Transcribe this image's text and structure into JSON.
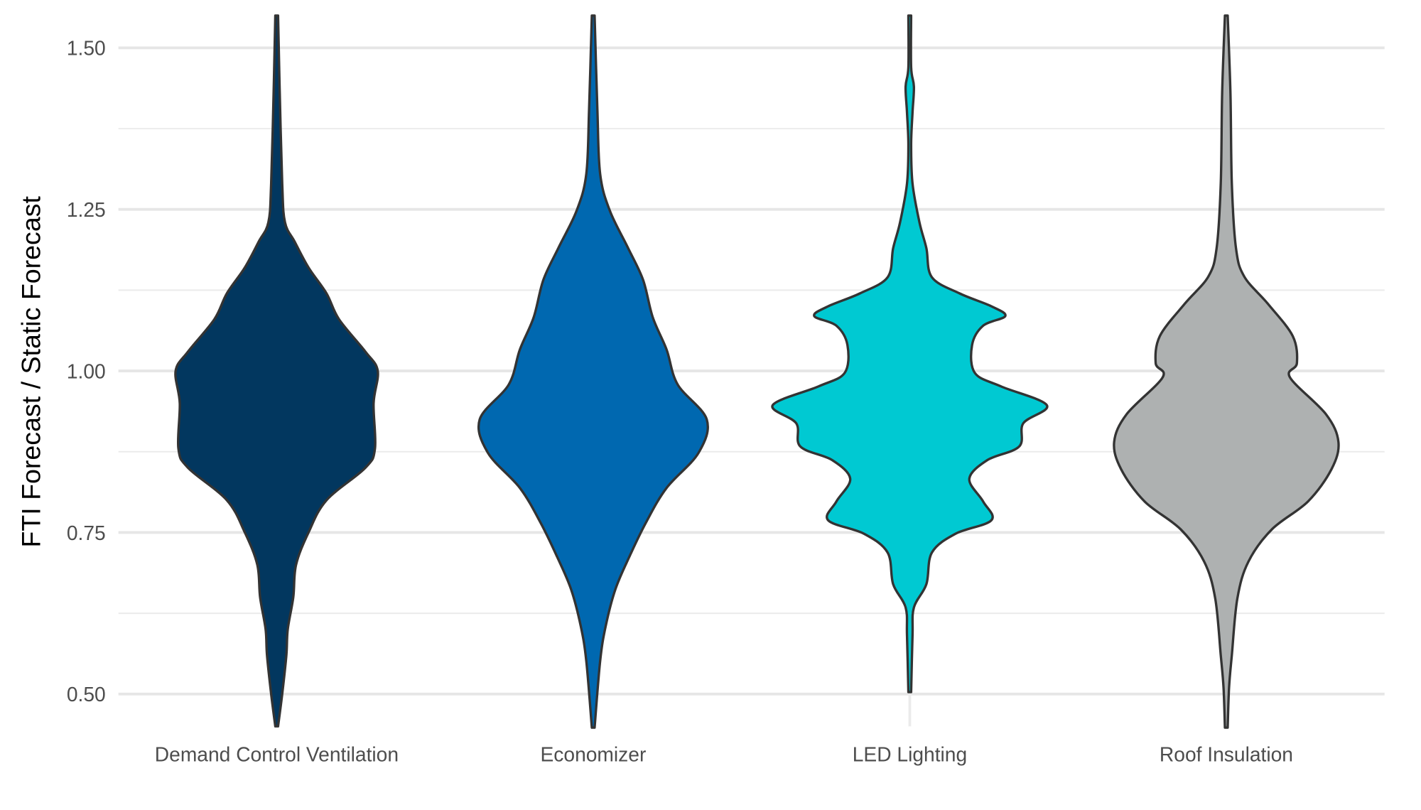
{
  "chart_data": {
    "type": "violin",
    "title": "",
    "xlabel": "",
    "ylabel": "FTI Forecast / Static Forecast",
    "ylim": [
      0.45,
      1.55
    ],
    "yticks": [
      "0.50",
      "0.75",
      "1.00",
      "1.25",
      "1.50"
    ],
    "ytick_values": [
      0.5,
      0.75,
      1.0,
      1.25,
      1.5
    ],
    "grid": true,
    "outline_color": "#333333",
    "series": [
      {
        "category": "Demand Control Ventilation",
        "color": "#02375f",
        "profile": [
          [
            1.55,
            0.01
          ],
          [
            1.45,
            0.02
          ],
          [
            1.29,
            0.04
          ],
          [
            1.23,
            0.06
          ],
          [
            1.2,
            0.13
          ],
          [
            1.16,
            0.23
          ],
          [
            1.12,
            0.36
          ],
          [
            1.08,
            0.45
          ],
          [
            1.03,
            0.64
          ],
          [
            1.0,
            0.73
          ],
          [
            0.95,
            0.7
          ],
          [
            0.88,
            0.71
          ],
          [
            0.85,
            0.64
          ],
          [
            0.8,
            0.36
          ],
          [
            0.75,
            0.23
          ],
          [
            0.7,
            0.14
          ],
          [
            0.65,
            0.12
          ],
          [
            0.6,
            0.08
          ],
          [
            0.56,
            0.07
          ],
          [
            0.5,
            0.04
          ],
          [
            0.45,
            0.01
          ]
        ]
      },
      {
        "category": "Economizer",
        "color": "#0068b0",
        "profile": [
          [
            1.55,
            0.01
          ],
          [
            1.405,
            0.03
          ],
          [
            1.305,
            0.05
          ],
          [
            1.248,
            0.12
          ],
          [
            1.191,
            0.25
          ],
          [
            1.141,
            0.36
          ],
          [
            1.083,
            0.43
          ],
          [
            1.033,
            0.53
          ],
          [
            0.979,
            0.61
          ],
          [
            0.925,
            0.82
          ],
          [
            0.873,
            0.76
          ],
          [
            0.819,
            0.53
          ],
          [
            0.765,
            0.38
          ],
          [
            0.712,
            0.26
          ],
          [
            0.662,
            0.16
          ],
          [
            0.605,
            0.09
          ],
          [
            0.551,
            0.05
          ],
          [
            0.448,
            0.01
          ]
        ]
      },
      {
        "category": "LED Lighting",
        "color": "#00c9d2",
        "profile": [
          [
            1.55,
            0.01
          ],
          [
            1.47,
            0.01
          ],
          [
            1.44,
            0.03
          ],
          [
            1.4,
            0.02
          ],
          [
            1.35,
            0.01
          ],
          [
            1.29,
            0.02
          ],
          [
            1.23,
            0.07
          ],
          [
            1.19,
            0.12
          ],
          [
            1.145,
            0.16
          ],
          [
            1.12,
            0.36
          ],
          [
            1.1,
            0.59
          ],
          [
            1.085,
            0.69
          ],
          [
            1.07,
            0.53
          ],
          [
            1.04,
            0.45
          ],
          [
            0.997,
            0.47
          ],
          [
            0.976,
            0.66
          ],
          [
            0.947,
            0.99
          ],
          [
            0.919,
            0.82
          ],
          [
            0.883,
            0.79
          ],
          [
            0.862,
            0.56
          ],
          [
            0.833,
            0.43
          ],
          [
            0.798,
            0.53
          ],
          [
            0.769,
            0.59
          ],
          [
            0.748,
            0.33
          ],
          [
            0.719,
            0.16
          ],
          [
            0.67,
            0.12
          ],
          [
            0.634,
            0.03
          ],
          [
            0.591,
            0.02
          ],
          [
            0.503,
            0.01
          ]
        ]
      },
      {
        "category": "Roof Insulation",
        "color": "#aeb1b1",
        "profile": [
          [
            1.55,
            0.01
          ],
          [
            1.43,
            0.03
          ],
          [
            1.29,
            0.04
          ],
          [
            1.19,
            0.07
          ],
          [
            1.146,
            0.13
          ],
          [
            1.104,
            0.3
          ],
          [
            1.054,
            0.48
          ],
          [
            1.012,
            0.51
          ],
          [
            0.99,
            0.46
          ],
          [
            0.933,
            0.72
          ],
          [
            0.89,
            0.81
          ],
          [
            0.848,
            0.76
          ],
          [
            0.798,
            0.59
          ],
          [
            0.755,
            0.33
          ],
          [
            0.705,
            0.16
          ],
          [
            0.648,
            0.08
          ],
          [
            0.56,
            0.04
          ],
          [
            0.51,
            0.02
          ],
          [
            0.448,
            0.01
          ]
        ]
      }
    ]
  }
}
